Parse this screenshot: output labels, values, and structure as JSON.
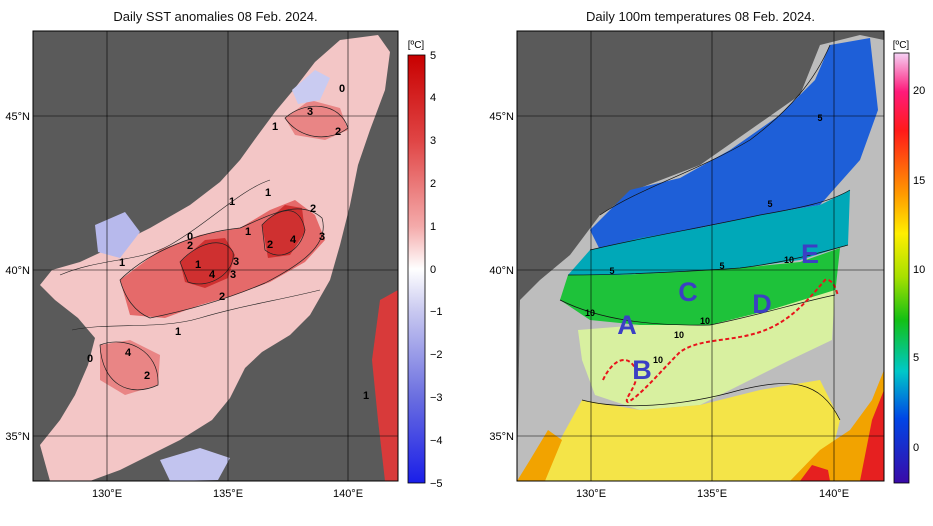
{
  "left_panel": {
    "title": "Daily SST anomalies 08 Feb. 2024.",
    "unit": "[ºC]",
    "colorbar_ticks": [
      "5",
      "4",
      "3",
      "2",
      "1",
      "0",
      "−1",
      "−2",
      "−3",
      "−4",
      "−5"
    ],
    "lon_ticks": [
      "130°E",
      "135°E",
      "140°E"
    ],
    "lat_ticks": [
      "45°N",
      "40°N",
      "35°N"
    ],
    "contour_labels": [
      "0",
      "3",
      "1",
      "2",
      "1",
      "2",
      "1",
      "2",
      "4",
      "3",
      "0",
      "1",
      "2",
      "4",
      "3",
      "3",
      "1",
      "2",
      "1",
      "4",
      "1",
      "2",
      "1",
      "0"
    ]
  },
  "right_panel": {
    "title": "Daily 100m temperatures 08 Feb. 2024.",
    "unit": "[ºC]",
    "colorbar_ticks": [
      "20",
      "15",
      "10",
      "5",
      "0"
    ],
    "lon_ticks": [
      "130°E",
      "135°E",
      "140°E"
    ],
    "lat_ticks": [
      "45°N",
      "40°N",
      "35°N"
    ],
    "contour_labels": [
      "5",
      "5",
      "5",
      "5",
      "10",
      "10",
      "10",
      "10",
      "10"
    ],
    "region_labels": [
      "A",
      "B",
      "C",
      "D",
      "E"
    ]
  },
  "colors": {
    "land": "#5a5a5a",
    "anomaly_warm": "#d23a3a",
    "anomaly_cold": "#3d4fd1",
    "region_label": "#3b3fc4",
    "front_line": "#e8141b"
  }
}
